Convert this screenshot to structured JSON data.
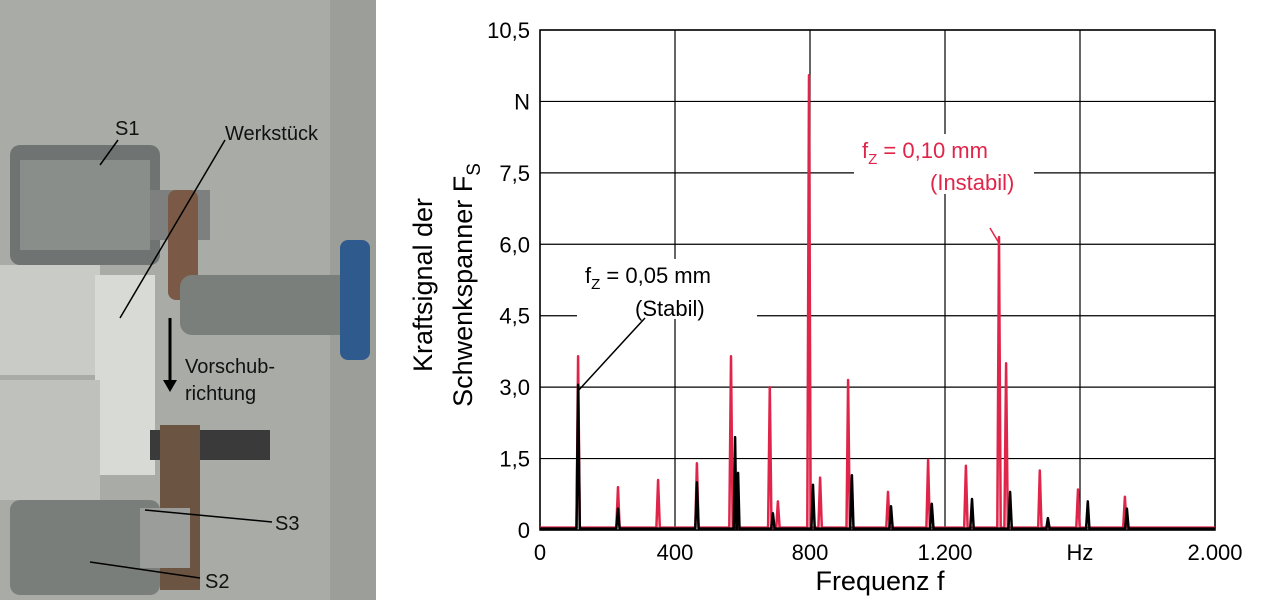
{
  "photo": {
    "labels": [
      "S1",
      "Werkstück",
      "Vorschub-",
      "richtung",
      "S3",
      "S2"
    ]
  },
  "chart_data": {
    "type": "line",
    "y_label": {
      "line1": "Kraftsignal der",
      "line2": "Schwenkspanner F",
      "sub": "S"
    },
    "x_label": "Frequenz f",
    "xlim": [
      0,
      2000
    ],
    "ylim": [
      0,
      10.5
    ],
    "xticks": [
      0,
      400,
      800,
      {
        "value": 1200,
        "label": "1.200"
      },
      {
        "value": 1600,
        "label": "Hz"
      },
      {
        "value": 2000,
        "label": "2.000"
      }
    ],
    "yticks": [
      0,
      {
        "value": 1.5,
        "label": "1,5"
      },
      {
        "value": 3,
        "label": "3,0"
      },
      {
        "value": 4.5,
        "label": "4,5"
      },
      {
        "value": 6,
        "label": "6,0"
      },
      {
        "value": 7.5,
        "label": "7,5"
      },
      {
        "value": 9,
        "label": "N"
      },
      {
        "value": 10.5,
        "label": "10,5"
      }
    ],
    "grid": true,
    "series": [
      {
        "color": "#e0254a",
        "x": [
          0,
          108,
          113,
          118,
          226,
          231,
          236,
          345,
          350,
          355,
          460,
          465,
          470,
          561,
          566,
          571,
          676,
          681,
          686,
          700,
          705,
          710,
          792,
          797,
          802,
          825,
          830,
          835,
          908,
          913,
          918,
          1026,
          1031,
          1036,
          1145,
          1150,
          1155,
          1257,
          1262,
          1267,
          1355,
          1360,
          1365,
          1376,
          1381,
          1386,
          1476,
          1481,
          1486,
          1589,
          1594,
          1599,
          1728,
          1733,
          1738,
          2000
        ],
        "values": [
          0.05,
          0.05,
          3.65,
          0.05,
          0.05,
          0.9,
          0.05,
          0.05,
          1.05,
          0.05,
          0.05,
          1.4,
          0.05,
          0.05,
          3.65,
          0.05,
          0.05,
          3.0,
          0.05,
          0.05,
          0.6,
          0.05,
          0.05,
          9.55,
          0.05,
          0.05,
          1.1,
          0.05,
          0.05,
          3.15,
          0.05,
          0.05,
          0.8,
          0.05,
          0.05,
          1.47,
          0.05,
          0.05,
          1.35,
          0.05,
          0.05,
          6.15,
          0.05,
          0.05,
          3.5,
          0.05,
          0.05,
          1.25,
          0.05,
          0.05,
          0.85,
          0.05,
          0.05,
          0.7,
          0.05,
          0.05
        ]
      },
      {
        "color": "#000000",
        "x": [
          0,
          108,
          113,
          118,
          226,
          231,
          236,
          460,
          465,
          470,
          574,
          578,
          582,
          583,
          587,
          591,
          685,
          690,
          695,
          804,
          809,
          814,
          919,
          924,
          929,
          1035,
          1040,
          1045,
          1156,
          1161,
          1166,
          1275,
          1280,
          1285,
          1388,
          1393,
          1398,
          1500,
          1505,
          1510,
          1618,
          1623,
          1628,
          1734,
          1739,
          1744,
          2000
        ],
        "values": [
          0.03,
          0.03,
          3.05,
          0.03,
          0.03,
          0.45,
          0.03,
          0.03,
          1.0,
          0.03,
          0.03,
          1.95,
          0.03,
          0.03,
          1.2,
          0.03,
          0.03,
          0.35,
          0.03,
          0.03,
          0.95,
          0.03,
          0.03,
          1.15,
          0.03,
          0.03,
          0.5,
          0.03,
          0.03,
          0.55,
          0.03,
          0.03,
          0.65,
          0.03,
          0.03,
          0.8,
          0.03,
          0.03,
          0.25,
          0.03,
          0.03,
          0.6,
          0.03,
          0.03,
          0.45,
          0.03,
          0.03
        ]
      }
    ],
    "annotations": [
      {
        "f": "f",
        "sub": "Z",
        "text": " = 0,10 mm",
        "note": "(Instabil)",
        "color": "#e0254a",
        "at": [
          1360,
          6.15
        ]
      },
      {
        "f": "f",
        "sub": "Z",
        "text": " = 0,05 mm",
        "note": "(Stabil)",
        "color": "#000000",
        "at": [
          113,
          3.05
        ]
      }
    ]
  }
}
